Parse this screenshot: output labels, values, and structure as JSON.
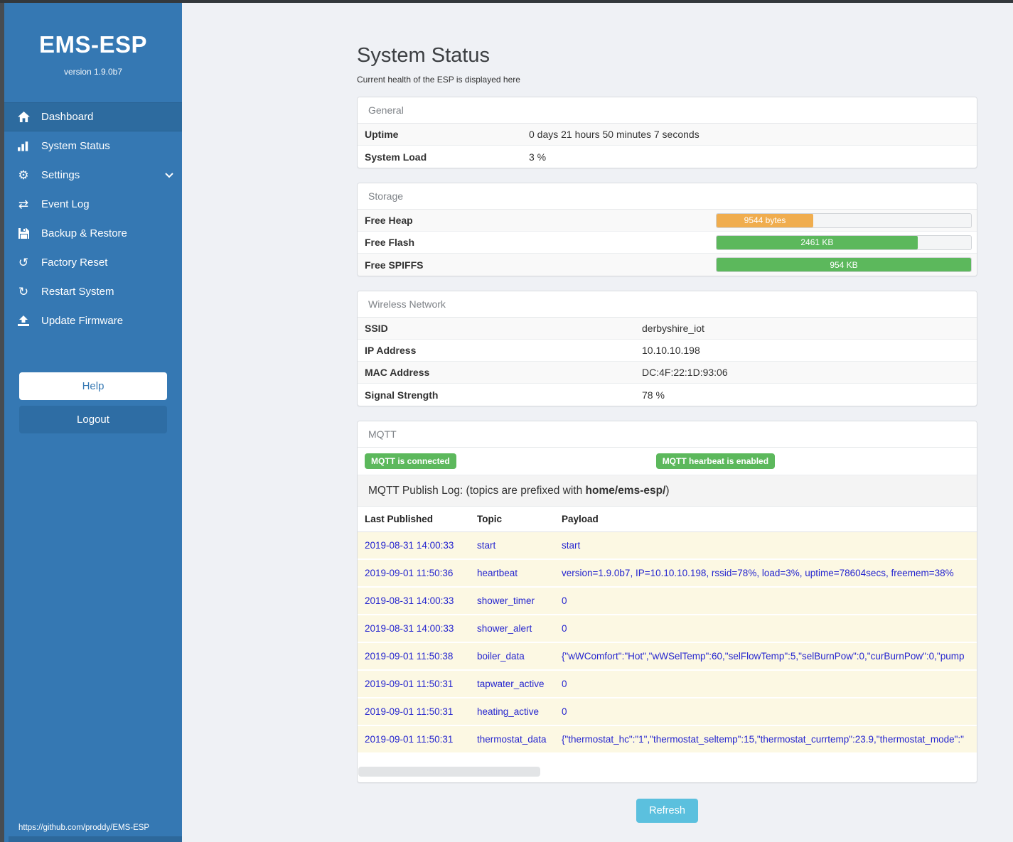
{
  "colors": {
    "sidebar": "#3578b3",
    "sidebar_active": "#2d6b9f",
    "badge_green": "#5cb85c",
    "bar_orange": "#f0ad4e",
    "bar_green": "#5cb85c",
    "refresh_blue": "#5bc0de",
    "log_text_blue": "#2525cf",
    "log_row_bg": "#fcf8e3"
  },
  "sidebar": {
    "brand": "EMS-ESP",
    "version": "version 1.9.0b7",
    "items": [
      {
        "label": "Dashboard",
        "icon": "home-icon",
        "active": true
      },
      {
        "label": "System Status",
        "icon": "bar-chart-icon",
        "active": false
      },
      {
        "label": "Settings",
        "icon": "gear-icon",
        "active": false,
        "chevron": "chevron-down-icon"
      },
      {
        "label": "Event Log",
        "icon": "swap-arrows-icon",
        "active": false
      },
      {
        "label": "Backup & Restore",
        "icon": "floppy-icon",
        "active": false
      },
      {
        "label": "Factory Reset",
        "icon": "undo-icon",
        "active": false
      },
      {
        "label": "Restart System",
        "icon": "refresh-icon",
        "active": false
      },
      {
        "label": "Update Firmware",
        "icon": "upload-icon",
        "active": false
      }
    ],
    "icon_glyphs": {
      "gear": "⚙",
      "swap": "⇄",
      "undo": "↺",
      "refresh": "↻"
    },
    "help_label": "Help",
    "logout_label": "Logout",
    "footer_link": "https://github.com/proddy/EMS-ESP"
  },
  "main": {
    "title": "System Status",
    "subtitle": "Current health of the ESP is displayed here",
    "refresh_label": "Refresh",
    "panels": {
      "general": {
        "title": "General",
        "rows": [
          {
            "label": "Uptime",
            "value": "0 days 21 hours 50 minutes 7 seconds"
          },
          {
            "label": "System Load",
            "value": "3 %"
          }
        ]
      },
      "storage": {
        "title": "Storage",
        "rows": [
          {
            "label": "Free Heap",
            "bar_label": "9544 bytes",
            "percent": 38,
            "color": "#f0ad4e"
          },
          {
            "label": "Free Flash",
            "bar_label": "2461 KB",
            "percent": 79,
            "color": "#5cb85c"
          },
          {
            "label": "Free SPIFFS",
            "bar_label": "954 KB",
            "percent": 100,
            "color": "#5cb85c"
          }
        ]
      },
      "wireless": {
        "title": "Wireless Network",
        "rows": [
          {
            "label": "SSID",
            "value": "derbyshire_iot"
          },
          {
            "label": "IP Address",
            "value": "10.10.10.198"
          },
          {
            "label": "MAC Address",
            "value": "DC:4F:22:1D:93:06"
          },
          {
            "label": "Signal Strength",
            "value": "78 %"
          }
        ]
      },
      "mqtt": {
        "title": "MQTT",
        "badges": [
          "MQTT is connected",
          "MQTT hearbeat is enabled"
        ],
        "log_band": {
          "prefix": "MQTT Publish Log: (topics are prefixed with ",
          "bold": "home/ems-esp/",
          "suffix": ")"
        },
        "columns": [
          "Last Published",
          "Topic",
          "Payload"
        ],
        "rows": [
          [
            "2019-08-31 14:00:33",
            "start",
            "start"
          ],
          [
            "2019-09-01 11:50:36",
            "heartbeat",
            "version=1.9.0b7, IP=10.10.10.198, rssid=78%, load=3%, uptime=78604secs, freemem=38%"
          ],
          [
            "2019-08-31 14:00:33",
            "shower_timer",
            "0"
          ],
          [
            "2019-08-31 14:00:33",
            "shower_alert",
            "0"
          ],
          [
            "2019-09-01 11:50:38",
            "boiler_data",
            "{\"wWComfort\":\"Hot\",\"wWSelTemp\":60,\"selFlowTemp\":5,\"selBurnPow\":0,\"curBurnPow\":0,\"pump"
          ],
          [
            "2019-09-01 11:50:31",
            "tapwater_active",
            "0"
          ],
          [
            "2019-09-01 11:50:31",
            "heating_active",
            "0"
          ],
          [
            "2019-09-01 11:50:31",
            "thermostat_data",
            "{\"thermostat_hc\":\"1\",\"thermostat_seltemp\":15,\"thermostat_currtemp\":23.9,\"thermostat_mode\":\""
          ]
        ]
      }
    }
  }
}
